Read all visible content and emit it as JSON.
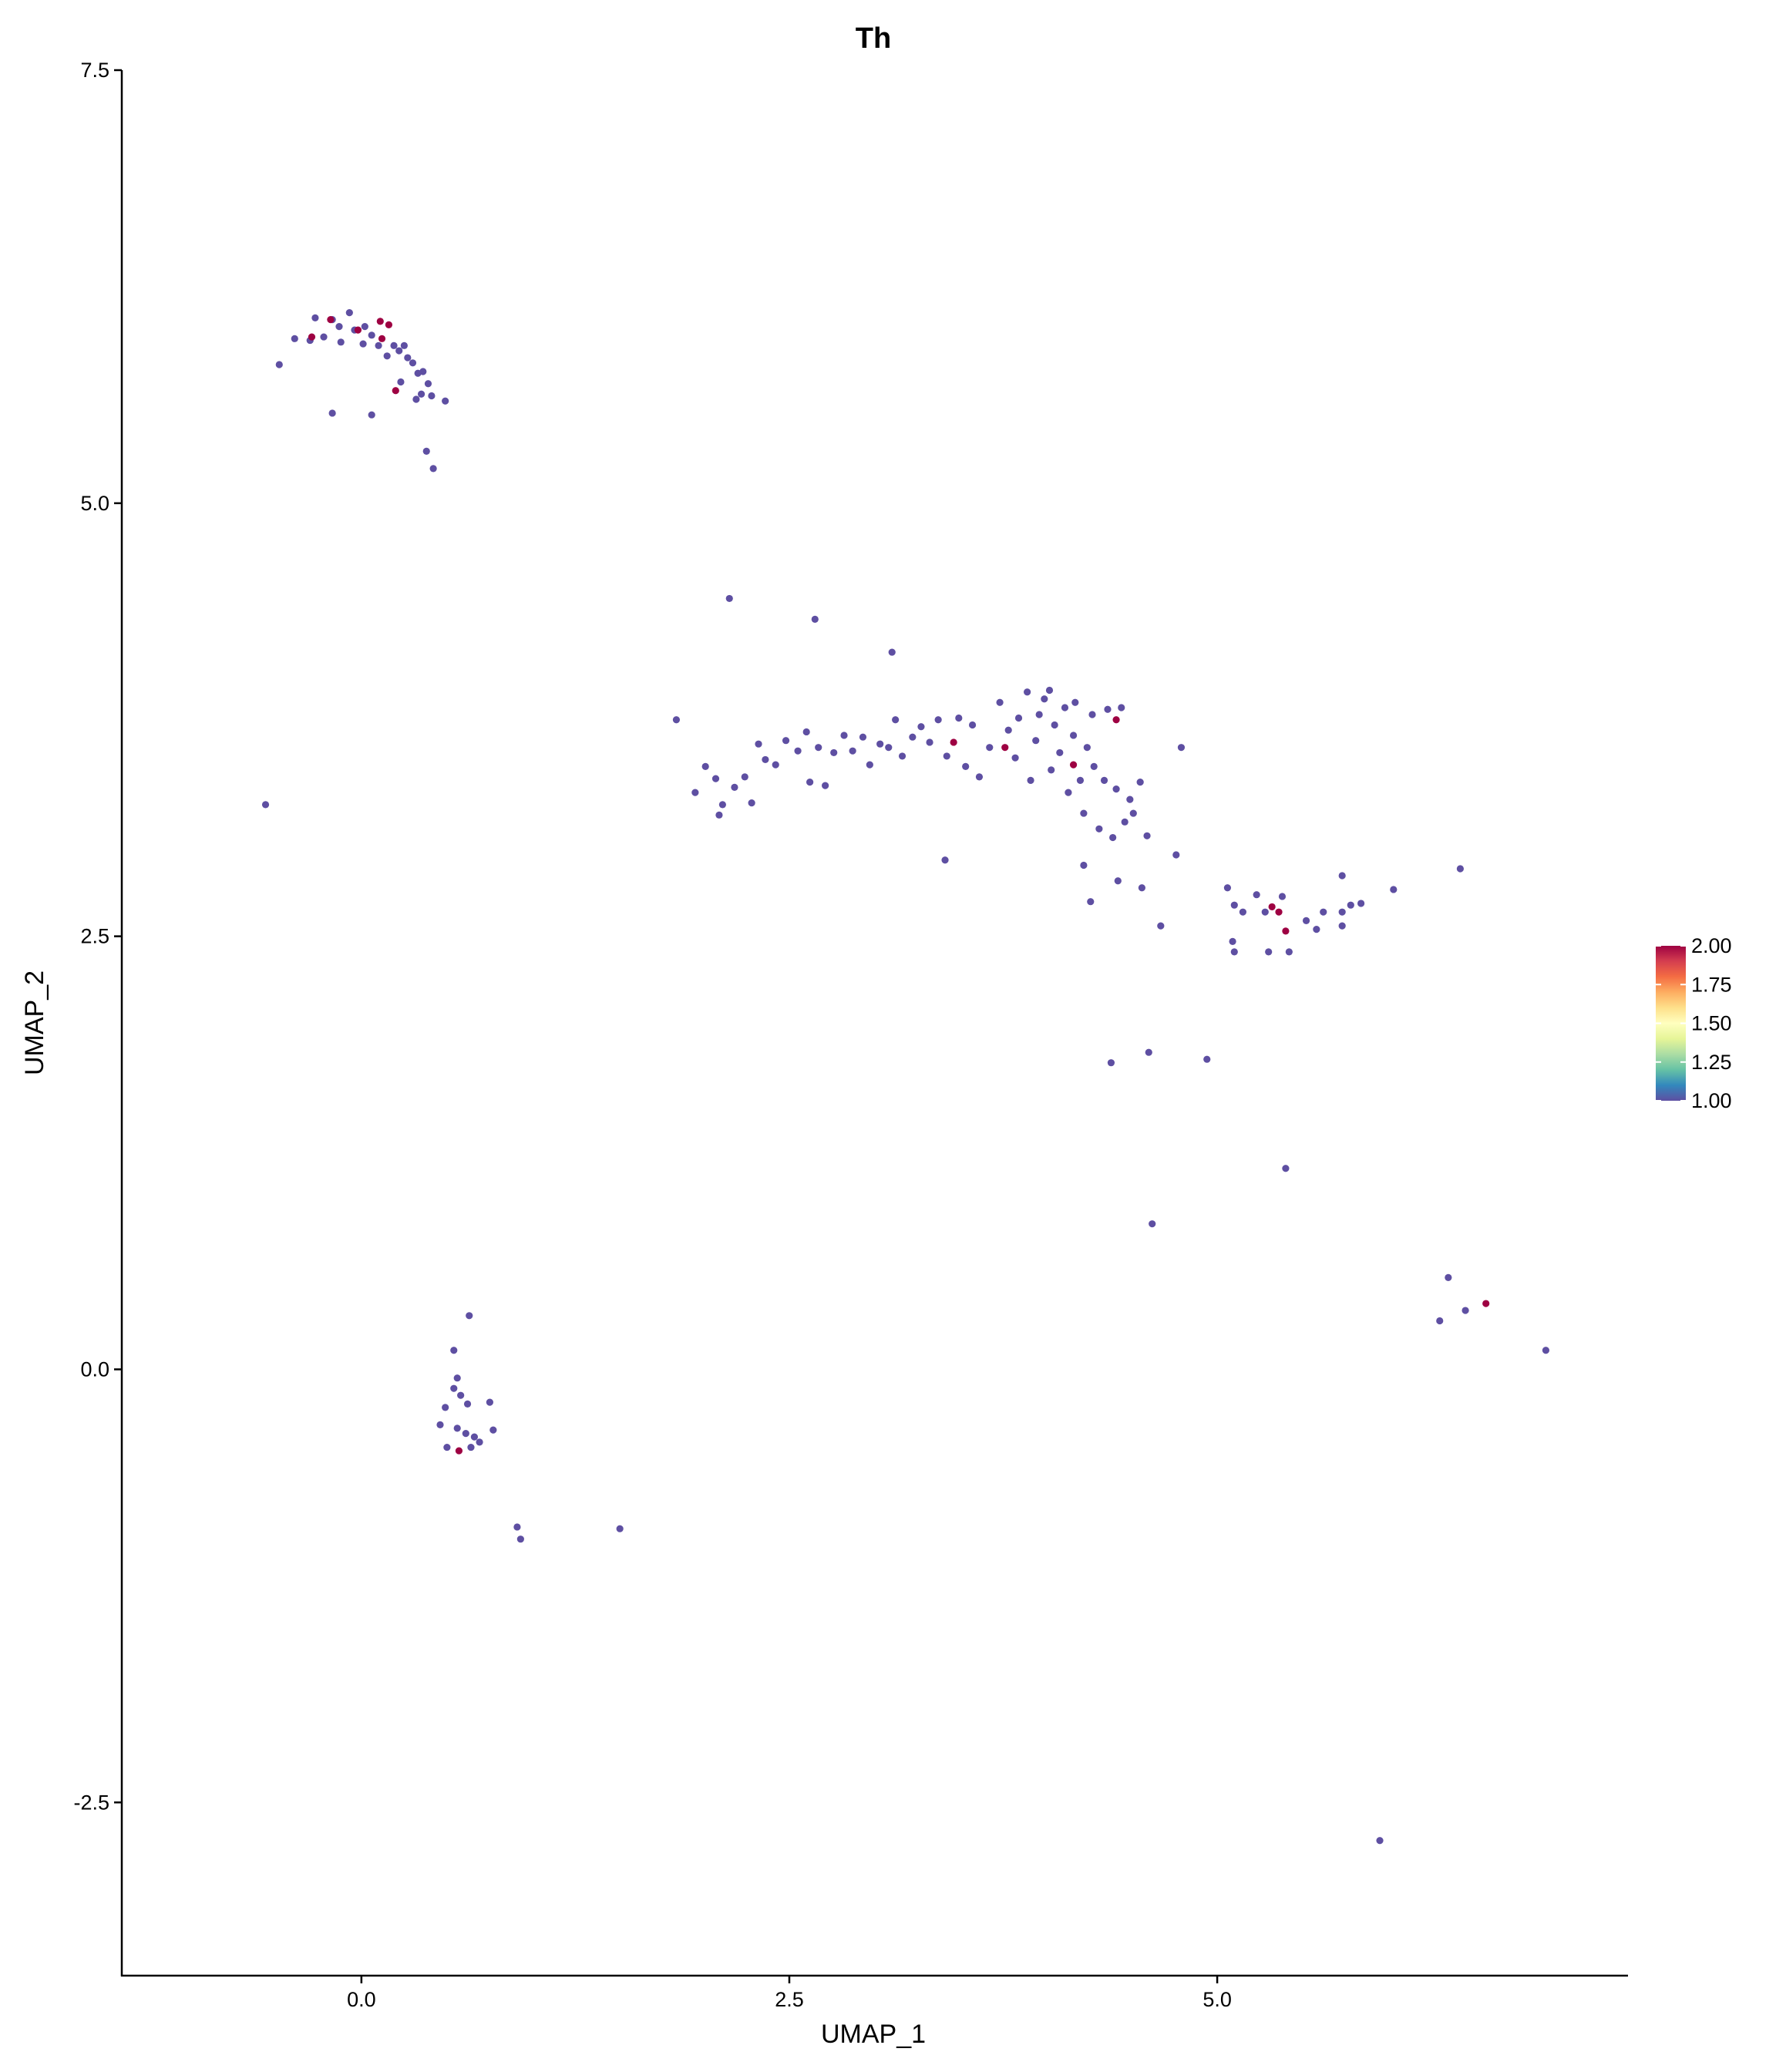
{
  "chart_data": {
    "type": "scatter",
    "title": "Th",
    "x_label": "UMAP_1",
    "y_label": "UMAP_2",
    "xlim": [
      -1.4,
      7.4
    ],
    "ylim": [
      -3.5,
      7.5
    ],
    "xticks": [
      {
        "value": 0,
        "label": "0.0"
      },
      2.5,
      {
        "value": 5,
        "label": "5.0"
      }
    ],
    "yticks": [
      -2.5,
      {
        "value": 0,
        "label": "0.0"
      },
      2.5,
      {
        "value": 5,
        "label": "5.0"
      },
      7.5
    ],
    "x": [
      -0.48,
      -0.39,
      -0.3,
      -0.27,
      -0.22,
      -0.17,
      -0.13,
      -0.07,
      -0.04,
      0.02,
      0.06,
      0.1,
      0.19,
      0.22,
      0.25,
      0.27,
      0.3,
      0.33,
      0.36,
      0.39,
      0.35,
      0.41,
      0.49,
      0.32,
      0.23,
      -0.17,
      0.06,
      0.38,
      0.42,
      0.01,
      -0.12,
      0.15,
      -0.56,
      2.15,
      2.65,
      3.1,
      1.84,
      1.95,
      2.01,
      2.07,
      2.09,
      2.11,
      2.18,
      2.24,
      2.28,
      2.32,
      2.36,
      2.42,
      2.48,
      2.55,
      2.6,
      2.62,
      2.67,
      2.71,
      2.76,
      2.82,
      2.87,
      2.93,
      2.97,
      3.03,
      3.08,
      3.12,
      3.16,
      3.22,
      3.27,
      3.32,
      3.37,
      3.41,
      3.42,
      3.49,
      3.53,
      3.57,
      3.61,
      3.67,
      3.73,
      3.78,
      3.82,
      3.84,
      3.89,
      3.91,
      3.94,
      3.96,
      3.99,
      4.02,
      4.03,
      4.05,
      4.08,
      4.11,
      4.13,
      4.16,
      4.17,
      4.2,
      4.22,
      4.24,
      4.27,
      4.28,
      4.31,
      4.34,
      4.36,
      4.39,
      4.41,
      4.44,
      4.46,
      4.49,
      4.51,
      4.55,
      4.59,
      4.42,
      4.26,
      4.79,
      4.76,
      4.56,
      4.67,
      4.22,
      5.06,
      5.1,
      5.09,
      5.1,
      5.15,
      5.23,
      5.28,
      5.3,
      5.38,
      5.42,
      5.52,
      5.58,
      5.62,
      5.73,
      5.73,
      5.73,
      5.78,
      5.84,
      6.03,
      6.42,
      4.38,
      4.6,
      4.94,
      5.4,
      4.62,
      6.35,
      6.3,
      6.45,
      6.92,
      5.95,
      0.63,
      0.54,
      0.56,
      0.54,
      0.58,
      0.62,
      0.75,
      0.49,
      0.46,
      0.56,
      0.61,
      0.66,
      0.77,
      0.69,
      0.5,
      0.64,
      0.91,
      0.93,
      1.51,
      -0.18,
      -0.02,
      0.11,
      0.16,
      0.12,
      0.2,
      -0.29,
      3.46,
      3.76,
      4.16,
      4.41,
      5.32,
      5.36,
      5.4,
      6.57,
      0.57
    ],
    "y": [
      5.8,
      5.95,
      5.94,
      6.07,
      5.96,
      6.06,
      6.02,
      6.1,
      6.0,
      6.02,
      5.97,
      5.91,
      5.91,
      5.88,
      5.91,
      5.84,
      5.81,
      5.75,
      5.76,
      5.69,
      5.63,
      5.62,
      5.59,
      5.6,
      5.7,
      5.52,
      5.51,
      5.3,
      5.2,
      5.92,
      5.93,
      5.85,
      3.26,
      4.45,
      4.33,
      4.14,
      3.75,
      3.33,
      3.48,
      3.41,
      3.2,
      3.26,
      3.36,
      3.42,
      3.27,
      3.61,
      3.52,
      3.49,
      3.63,
      3.57,
      3.68,
      3.39,
      3.59,
      3.37,
      3.56,
      3.66,
      3.57,
      3.65,
      3.49,
      3.61,
      3.59,
      3.75,
      3.54,
      3.65,
      3.71,
      3.62,
      3.75,
      2.94,
      3.54,
      3.76,
      3.48,
      3.72,
      3.42,
      3.59,
      3.85,
      3.69,
      3.53,
      3.76,
      3.91,
      3.4,
      3.63,
      3.78,
      3.87,
      3.92,
      3.46,
      3.72,
      3.56,
      3.82,
      3.33,
      3.66,
      3.85,
      3.4,
      3.21,
      3.59,
      3.78,
      3.48,
      3.12,
      3.4,
      3.81,
      3.07,
      3.35,
      3.82,
      3.16,
      3.29,
      3.21,
      3.39,
      3.08,
      2.82,
      2.7,
      3.59,
      2.97,
      2.78,
      2.56,
      2.91,
      2.78,
      2.68,
      2.47,
      2.41,
      2.64,
      2.74,
      2.64,
      2.41,
      2.73,
      2.41,
      2.59,
      2.54,
      2.64,
      2.64,
      2.85,
      2.56,
      2.68,
      2.69,
      2.77,
      2.89,
      1.77,
      1.83,
      1.79,
      1.16,
      0.84,
      0.53,
      0.28,
      0.34,
      0.11,
      -2.72,
      0.31,
      0.11,
      -0.05,
      -0.11,
      -0.15,
      -0.2,
      -0.19,
      -0.22,
      -0.32,
      -0.34,
      -0.37,
      -0.39,
      -0.35,
      -0.42,
      -0.45,
      -0.45,
      -0.91,
      -0.98,
      -0.92,
      6.06,
      6.0,
      6.05,
      6.03,
      5.95,
      5.65,
      5.96,
      3.62,
      3.59,
      3.49,
      3.75,
      2.67,
      2.64,
      2.53,
      0.38,
      -0.47
    ],
    "values": [
      1,
      1,
      1,
      1,
      1,
      1,
      1,
      1,
      1,
      1,
      1,
      1,
      1,
      1,
      1,
      1,
      1,
      1,
      1,
      1,
      1,
      1,
      1,
      1,
      1,
      1,
      1,
      1,
      1,
      1,
      1,
      1,
      1,
      1,
      1,
      1,
      1,
      1,
      1,
      1,
      1,
      1,
      1,
      1,
      1,
      1,
      1,
      1,
      1,
      1,
      1,
      1,
      1,
      1,
      1,
      1,
      1,
      1,
      1,
      1,
      1,
      1,
      1,
      1,
      1,
      1,
      1,
      1,
      1,
      1,
      1,
      1,
      1,
      1,
      1,
      1,
      1,
      1,
      1,
      1,
      1,
      1,
      1,
      1,
      1,
      1,
      1,
      1,
      1,
      1,
      1,
      1,
      1,
      1,
      1,
      1,
      1,
      1,
      1,
      1,
      1,
      1,
      1,
      1,
      1,
      1,
      1,
      1,
      1,
      1,
      1,
      1,
      1,
      1,
      1,
      1,
      1,
      1,
      1,
      1,
      1,
      1,
      1,
      1,
      1,
      1,
      1,
      1,
      1,
      1,
      1,
      1,
      1,
      1,
      1,
      1,
      1,
      1,
      1,
      1,
      1,
      1,
      1,
      1,
      1,
      1,
      1,
      1,
      1,
      1,
      1,
      1,
      1,
      1,
      1,
      1,
      1,
      1,
      1,
      1,
      1,
      1,
      1,
      2,
      2,
      2,
      2,
      2,
      2,
      2,
      2,
      2,
      2,
      2,
      2,
      2,
      2,
      2,
      2
    ],
    "colorbar": {
      "lim": [
        1,
        2
      ],
      "ticks": [
        {
          "value": 1,
          "label": "1.00"
        },
        {
          "value": 1.25,
          "label": "1.25"
        },
        {
          "value": 1.5,
          "label": "1.50"
        },
        {
          "value": 1.75,
          "label": "1.75"
        },
        {
          "value": 2,
          "label": "2.00"
        }
      ],
      "colors": [
        "#5E4FA2",
        "#3288BD",
        "#66C2A5",
        "#ABDDA4",
        "#E6F598",
        "#FFFFBF",
        "#FEE08B",
        "#FDAE61",
        "#F46D43",
        "#D53E4F",
        "#9E0142"
      ]
    }
  }
}
